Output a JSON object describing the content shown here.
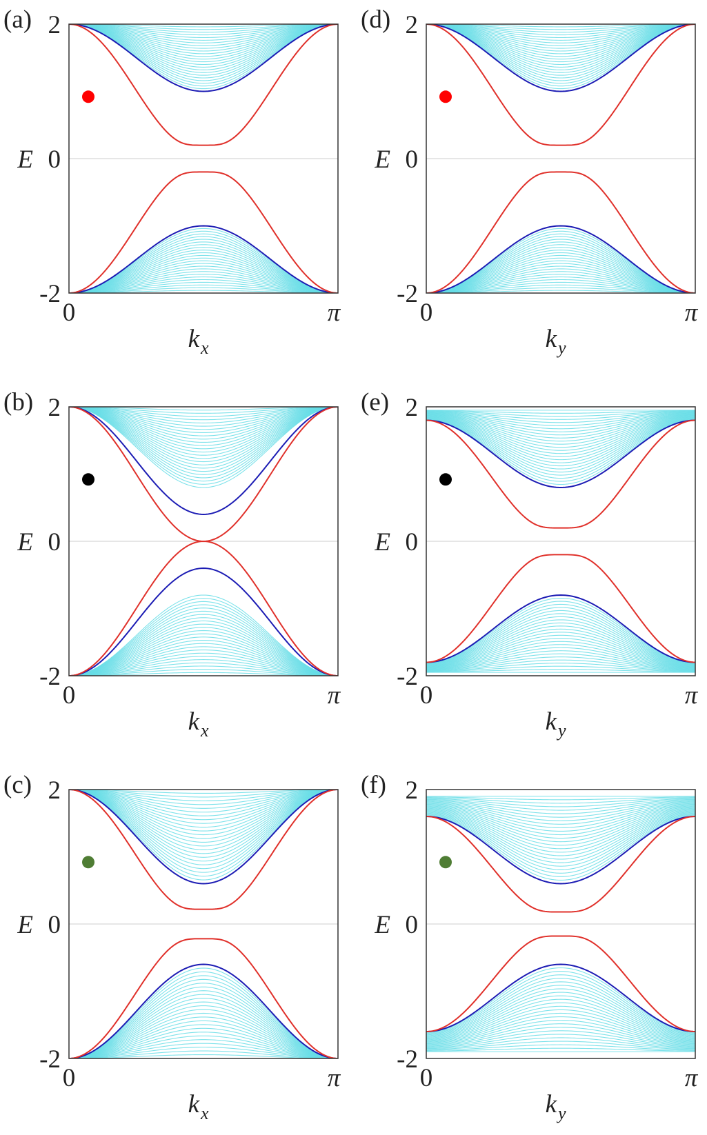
{
  "colors": {
    "bulk": "#66dde6",
    "edge_red": "#e0302a",
    "edge_blue": "#1c1cb4",
    "zero_line": "#d8d8d8",
    "marker_red": "#ff0000",
    "marker_black": "#000000",
    "marker_green": "#4f7d34"
  },
  "chart_data": [
    {
      "type": "line",
      "panel": "(a)",
      "ylabel": "E",
      "xlabel_main": "k",
      "xlabel_sub": "x",
      "xticks": [
        "0",
        "π"
      ],
      "yticks": [
        "-2",
        "0",
        "2"
      ],
      "ylim": [
        -2,
        2
      ],
      "xlim": [
        0,
        3.1416
      ],
      "marker": "red",
      "marker_y": 0.92,
      "series": [
        {
          "role": "bulk",
          "min_upper": 1.0,
          "max_upper": 2.0,
          "center_min_upper": 1.0,
          "edge_value": 2.0
        },
        {
          "role": "edge_red",
          "edge_value": 2.0,
          "center_gap": 0.2
        },
        {
          "role": "edge_blue",
          "edge_value": 2.0,
          "center_gap": 1.0
        }
      ]
    },
    {
      "type": "line",
      "panel": "(b)",
      "ylabel": "E",
      "xlabel_main": "k",
      "xlabel_sub": "x",
      "xticks": [
        "0",
        "π"
      ],
      "yticks": [
        "-2",
        "0",
        "2"
      ],
      "ylim": [
        -2,
        2
      ],
      "xlim": [
        0,
        3.1416
      ],
      "marker": "black",
      "marker_y": 0.92,
      "series": [
        {
          "role": "bulk",
          "min_upper": 0.8,
          "max_upper": 2.0,
          "center_min_upper": 0.8,
          "edge_value": 2.0
        },
        {
          "role": "edge_red",
          "edge_value": 2.0,
          "center_gap": 0.0
        },
        {
          "role": "edge_blue",
          "edge_value": 2.0,
          "center_gap": 0.4
        }
      ]
    },
    {
      "type": "line",
      "panel": "(c)",
      "ylabel": "E",
      "xlabel_main": "k",
      "xlabel_sub": "x",
      "xticks": [
        "0",
        "π"
      ],
      "yticks": [
        "-2",
        "0",
        "2"
      ],
      "ylim": [
        -2,
        2
      ],
      "xlim": [
        0,
        3.1416
      ],
      "marker": "green",
      "marker_y": 0.92,
      "series": [
        {
          "role": "bulk",
          "min_upper": 0.6,
          "max_upper": 2.0,
          "center_min_upper": 0.6,
          "edge_value": 2.0
        },
        {
          "role": "edge_red",
          "edge_value": 2.0,
          "center_gap": 0.22
        },
        {
          "role": "edge_blue",
          "edge_value": 2.0,
          "center_gap": 0.6
        }
      ]
    },
    {
      "type": "line",
      "panel": "(d)",
      "ylabel": "E",
      "xlabel_main": "k",
      "xlabel_sub": "y",
      "xticks": [
        "0",
        "π"
      ],
      "yticks": [
        "-2",
        "0",
        "2"
      ],
      "ylim": [
        -2,
        2
      ],
      "xlim": [
        0,
        3.1416
      ],
      "marker": "red",
      "marker_y": 0.92,
      "series": [
        {
          "role": "bulk",
          "min_upper": 1.0,
          "max_upper": 2.0,
          "center_min_upper": 1.0,
          "edge_value": 2.0
        },
        {
          "role": "edge_red",
          "edge_value": 2.0,
          "center_gap": 0.2
        },
        {
          "role": "edge_blue",
          "edge_value": 2.0,
          "center_gap": 1.0
        }
      ]
    },
    {
      "type": "line",
      "panel": "(e)",
      "ylabel": "E",
      "xlabel_main": "k",
      "xlabel_sub": "y",
      "xticks": [
        "0",
        "π"
      ],
      "yticks": [
        "-2",
        "0",
        "2"
      ],
      "ylim": [
        -2,
        2
      ],
      "xlim": [
        0,
        3.1416
      ],
      "marker": "black",
      "marker_y": 0.92,
      "series": [
        {
          "role": "bulk",
          "min_upper": 0.8,
          "max_upper": 1.95,
          "center_min_upper": 0.8,
          "edge_value": 1.8
        },
        {
          "role": "edge_red",
          "edge_value": 1.8,
          "center_gap": 0.2
        },
        {
          "role": "edge_blue",
          "edge_value": 1.8,
          "center_gap": 0.8
        }
      ]
    },
    {
      "type": "line",
      "panel": "(f)",
      "ylabel": "E",
      "xlabel_main": "k",
      "xlabel_sub": "y",
      "xticks": [
        "0",
        "π"
      ],
      "yticks": [
        "-2",
        "0",
        "2"
      ],
      "ylim": [
        -2,
        2
      ],
      "xlim": [
        0,
        3.1416
      ],
      "marker": "green",
      "marker_y": 0.92,
      "series": [
        {
          "role": "bulk",
          "min_upper": 0.6,
          "max_upper": 1.9,
          "center_min_upper": 0.6,
          "edge_value": 1.6
        },
        {
          "role": "edge_red",
          "edge_value": 1.6,
          "center_gap": 0.18
        },
        {
          "role": "edge_blue",
          "edge_value": 1.6,
          "center_gap": 0.6
        }
      ]
    }
  ]
}
